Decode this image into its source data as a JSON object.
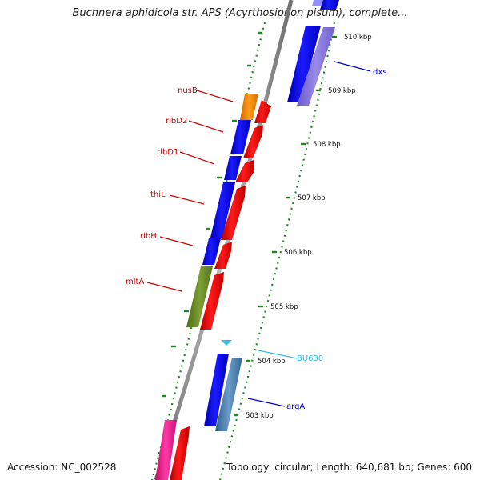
{
  "title": "Buchnera aphidicola str. APS (Acyrthosiphon pisum), complete...",
  "footer": {
    "accession": "Accession: NC_002528",
    "info": "Topology: circular; Length: 640,681 bp; Genes: 600"
  },
  "ticks": [
    {
      "label": "510 kbp",
      "kbp": 510
    },
    {
      "label": "509 kbp",
      "kbp": 509
    },
    {
      "label": "508 kbp",
      "kbp": 508
    },
    {
      "label": "507 kbp",
      "kbp": 507
    },
    {
      "label": "506 kbp",
      "kbp": 506
    },
    {
      "label": "505 kbp",
      "kbp": 505
    },
    {
      "label": "504 kbp",
      "kbp": 504
    },
    {
      "label": "503 kbp",
      "kbp": 503
    }
  ],
  "gene_labels": [
    {
      "name": "nusB",
      "color": "#cc0000"
    },
    {
      "name": "ribD2",
      "color": "#cc0000"
    },
    {
      "name": "ribD1",
      "color": "#cc0000"
    },
    {
      "name": "thiL",
      "color": "#cc0000"
    },
    {
      "name": "ribH",
      "color": "#cc0000"
    },
    {
      "name": "mltA",
      "color": "#cc0000"
    },
    {
      "name": "BU630",
      "color": "#33bbee"
    },
    {
      "name": "argA",
      "color": "#0000cc"
    },
    {
      "name": "dxs",
      "color": "#0000cc"
    }
  ],
  "colors": {
    "backbone": "#888888",
    "tick": "#228822",
    "cds_blue": "#0000ee",
    "rna_red": "#ee0000",
    "orange": "#ff8800",
    "olive": "#6b8e23",
    "steel": "#4682b4",
    "pink": "#ff1493",
    "lavender": "#8070d8"
  }
}
